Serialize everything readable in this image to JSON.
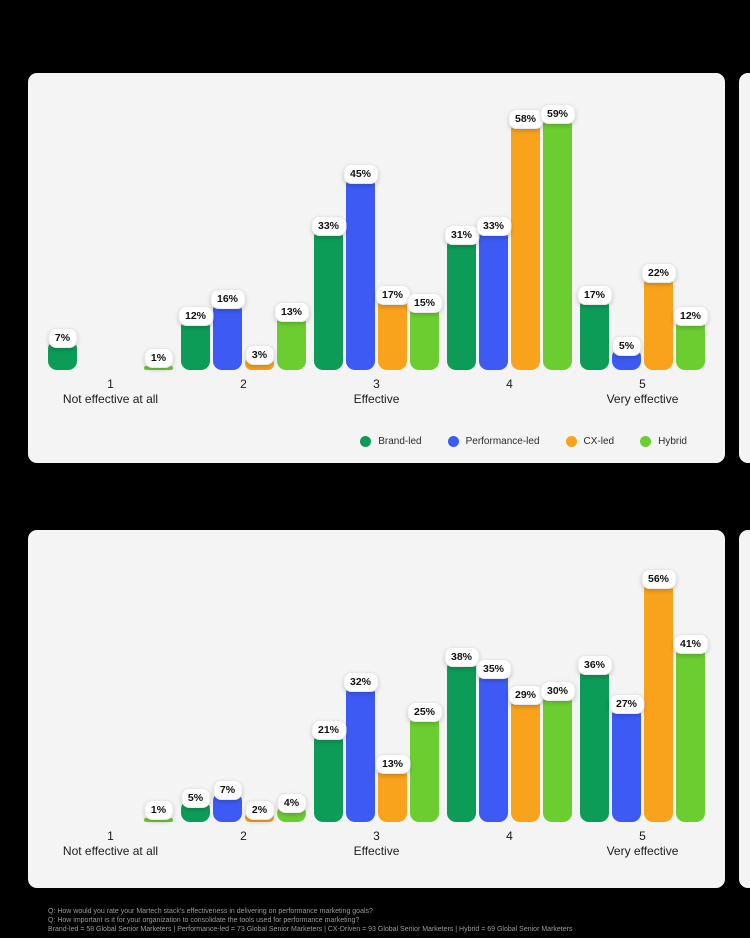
{
  "page": {
    "background": "#000000",
    "panel_background": "#f4f4f4",
    "value_suffix": "%"
  },
  "legend": {
    "items": [
      {
        "label": "Brand-led",
        "color": "#0d9b58"
      },
      {
        "label": "Performance-led",
        "color": "#3d5af5"
      },
      {
        "label": "CX-led",
        "color": "#f9a21c"
      },
      {
        "label": "Hybrid",
        "color": "#6ccd31"
      }
    ]
  },
  "chart_data": [
    {
      "type": "bar",
      "name": "martech-stack-effectiveness",
      "question": "Q: How would you rate your Martech stack's effectiveness in delivering on performance marketing goals?",
      "categories": [
        "1",
        "2",
        "3",
        "4",
        "5"
      ],
      "category_sublabels": [
        "Not effective at all",
        "",
        "Effective",
        "",
        "Very effective"
      ],
      "series": [
        {
          "name": "Brand-led",
          "color": "#0d9b58",
          "values": [
            7,
            12,
            33,
            31,
            17
          ]
        },
        {
          "name": "Performance-led",
          "color": "#3d5af5",
          "values": [
            0,
            16,
            45,
            33,
            5
          ]
        },
        {
          "name": "CX-led",
          "color": "#f9a21c",
          "values": [
            0,
            3,
            17,
            58,
            22
          ]
        },
        {
          "name": "Hybrid",
          "color": "#6ccd31",
          "values": [
            1,
            13,
            15,
            59,
            12
          ]
        }
      ],
      "value_suffix": "%",
      "ylim": [
        0,
        62
      ],
      "grid": false,
      "legend_position": "bottom-right",
      "show_legend": true
    },
    {
      "type": "bar",
      "name": "tool-consolidation-importance",
      "question": "Q: How important is it for your organization to consolidate the tools used for performance marketing?",
      "categories": [
        "1",
        "2",
        "3",
        "4",
        "5"
      ],
      "category_sublabels": [
        "Not effective at all",
        "",
        "Effective",
        "",
        "Very effective"
      ],
      "series": [
        {
          "name": "Brand-led",
          "color": "#0d9b58",
          "values": [
            0,
            5,
            21,
            38,
            36
          ]
        },
        {
          "name": "Performance-led",
          "color": "#3d5af5",
          "values": [
            0,
            7,
            32,
            35,
            27
          ]
        },
        {
          "name": "CX-led",
          "color": "#f9a21c",
          "values": [
            0,
            2,
            13,
            29,
            56
          ]
        },
        {
          "name": "Hybrid",
          "color": "#6ccd31",
          "values": [
            1,
            4,
            25,
            30,
            41
          ]
        }
      ],
      "value_suffix": "%",
      "ylim": [
        0,
        62
      ],
      "grid": false,
      "legend_position": "none",
      "show_legend": false
    }
  ],
  "footnotes": {
    "line1": "Q: How would you rate your Martech stack's effectiveness in delivering on performance marketing goals?",
    "line2": "Q: How important is it for your organization to consolidate the tools used for performance marketing?",
    "line3": "Brand-led = 58 Global Senior Marketers | Performance-led = 73 Global Senior Marketers | CX-Driven = 93 Global Senior Marketers | Hybrid = 69 Global Senior Marketers"
  }
}
